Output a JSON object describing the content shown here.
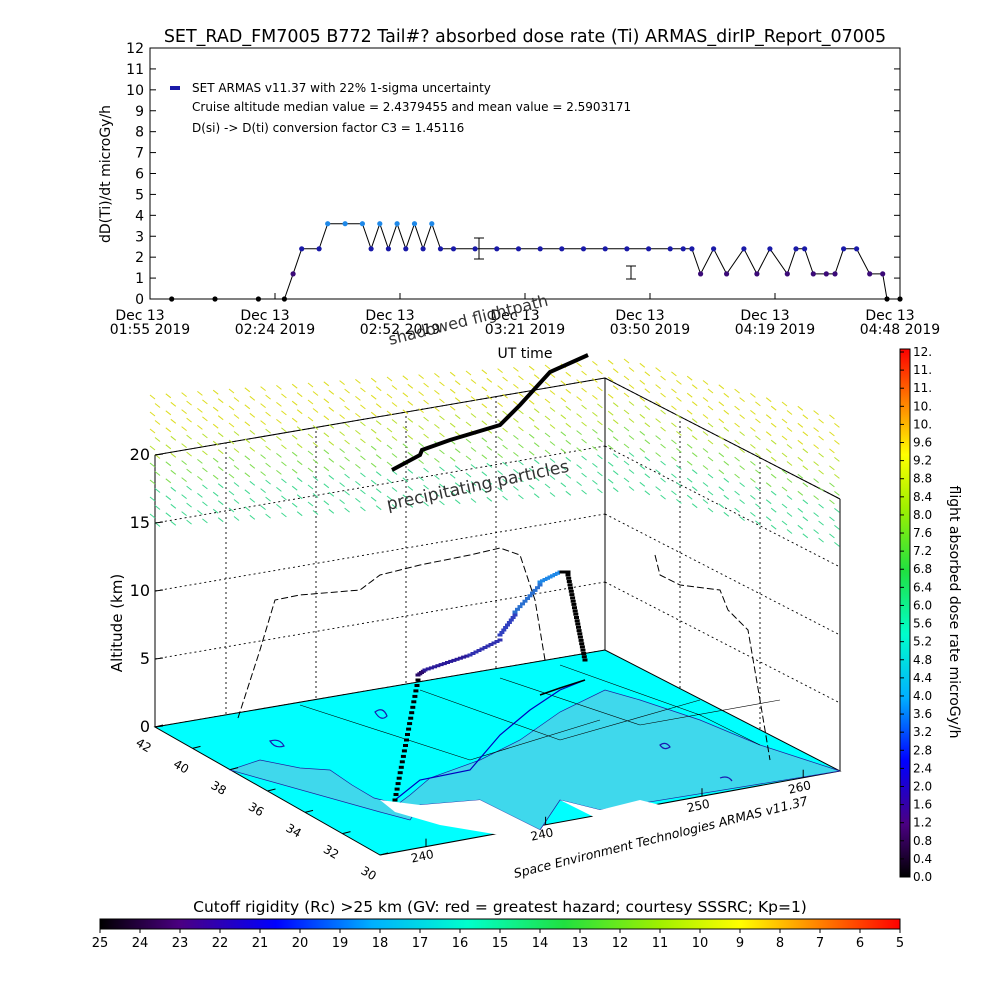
{
  "page_title": "SET_RAD_FM7005  B772 Tail#? absorbed dose rate (Ti) ARMAS_dirIP_Report_07005",
  "chart_data": [
    {
      "type": "line",
      "ylabel": "dD(Ti)/dt microGy/h",
      "xlabel": "UT time",
      "ylim": [
        0,
        12
      ],
      "yticks": [
        "0",
        "1",
        "2",
        "3",
        "4",
        "5",
        "6",
        "7",
        "8",
        "9",
        "10",
        "11",
        "12"
      ],
      "x_ticks": [
        {
          "l1": "Dec 13",
          "l2": "01:55 2019"
        },
        {
          "l1": "Dec 13",
          "l2": "02:24 2019"
        },
        {
          "l1": "Dec 13",
          "l2": "02:52 2019"
        },
        {
          "l1": "Dec 13",
          "l2": "03:21 2019"
        },
        {
          "l1": "Dec 13",
          "l2": "03:50 2019"
        },
        {
          "l1": "Dec 13",
          "l2": "04:19 2019"
        },
        {
          "l1": "Dec 13",
          "l2": "04:48 2019"
        }
      ],
      "legend": [
        "SET ARMAS v11.37 with 22% 1-sigma uncertainty",
        "Cruise altitude median value = 2.4379455 and mean value = 2.5903171",
        "D(si) -> D(ti) conversion factor C3 = 1.45116"
      ],
      "series_color": "#1a1aa8",
      "time_start": "01:55",
      "time_end": "04:48",
      "points": [
        [
          "02:00",
          0
        ],
        [
          "02:10",
          0
        ],
        [
          "02:20",
          0
        ],
        [
          "02:26",
          0
        ],
        [
          "02:28",
          1.2
        ],
        [
          "02:30",
          2.4
        ],
        [
          "02:34",
          2.4
        ],
        [
          "02:36",
          3.6
        ],
        [
          "02:40",
          3.6
        ],
        [
          "02:44",
          3.6
        ],
        [
          "02:46",
          2.4
        ],
        [
          "02:48",
          3.6
        ],
        [
          "02:50",
          2.4
        ],
        [
          "02:52",
          3.6
        ],
        [
          "02:54",
          2.4
        ],
        [
          "02:56",
          3.6
        ],
        [
          "02:58",
          2.4
        ],
        [
          "03:00",
          3.6
        ],
        [
          "03:02",
          2.4
        ],
        [
          "03:05",
          2.4
        ],
        [
          "03:10",
          2.4
        ],
        [
          "03:15",
          2.4
        ],
        [
          "03:20",
          2.4
        ],
        [
          "03:25",
          2.4
        ],
        [
          "03:30",
          2.4
        ],
        [
          "03:35",
          2.4
        ],
        [
          "03:40",
          2.4
        ],
        [
          "03:45",
          2.4
        ],
        [
          "03:50",
          2.4
        ],
        [
          "03:55",
          2.4
        ],
        [
          "03:58",
          2.4
        ],
        [
          "04:00",
          2.4
        ],
        [
          "04:02",
          1.2
        ],
        [
          "04:05",
          2.4
        ],
        [
          "04:08",
          1.2
        ],
        [
          "04:12",
          2.4
        ],
        [
          "04:15",
          1.2
        ],
        [
          "04:18",
          2.4
        ],
        [
          "04:22",
          1.2
        ],
        [
          "04:24",
          2.4
        ],
        [
          "04:26",
          2.4
        ],
        [
          "04:28",
          1.2
        ],
        [
          "04:31",
          1.2
        ],
        [
          "04:33",
          1.2
        ],
        [
          "04:35",
          2.4
        ],
        [
          "04:38",
          2.4
        ],
        [
          "04:41",
          1.2
        ],
        [
          "04:44",
          1.2
        ],
        [
          "04:45",
          0
        ],
        [
          "04:48",
          0
        ]
      ]
    },
    {
      "type": "scatter",
      "title": "",
      "zlabel": "Altitude (km)",
      "zticks": [
        "0",
        "5",
        "10",
        "15",
        "20"
      ],
      "lat_ticks": [
        "42",
        "40",
        "38",
        "36",
        "34",
        "32",
        "30"
      ],
      "lon_ticks": [
        "240",
        "240",
        "250",
        "260"
      ],
      "xlabel_3d": "Space Environment Technologies ARMAS v11.37",
      "annotations": [
        "shadowed flightpath",
        "precipitating particles"
      ],
      "colorbar_label": "flight absorbed dose rate microGy/h",
      "colorbar_ticks": [
        "0.0",
        "0.4",
        "0.8",
        "1.2",
        "1.6",
        "2.0",
        "2.4",
        "2.8",
        "3.2",
        "3.6",
        "4.0",
        "4.4",
        "4.8",
        "5.2",
        "5.6",
        "6.0",
        "6.4",
        "6.8",
        "7.2",
        "7.6",
        "8.0",
        "8.4",
        "8.8",
        "9.2",
        "9.6",
        "10.",
        "10.",
        "11.",
        "11.",
        "12."
      ]
    },
    {
      "type": "heatmap",
      "colorbar_title": "Cutoff rigidity (Rc) >25 km (GV: red = greatest hazard; courtesy SSSRC; Kp=1)",
      "colorbar_ticks": [
        "25",
        "24",
        "23",
        "22",
        "21",
        "20",
        "19",
        "18",
        "17",
        "16",
        "15",
        "14",
        "13",
        "12",
        "11",
        "10",
        "9",
        "8",
        "7",
        "6",
        "5"
      ]
    }
  ],
  "colors": {
    "sea": "#00ffff",
    "land": "#3fd8ec",
    "accent": "#1a1aa8"
  }
}
